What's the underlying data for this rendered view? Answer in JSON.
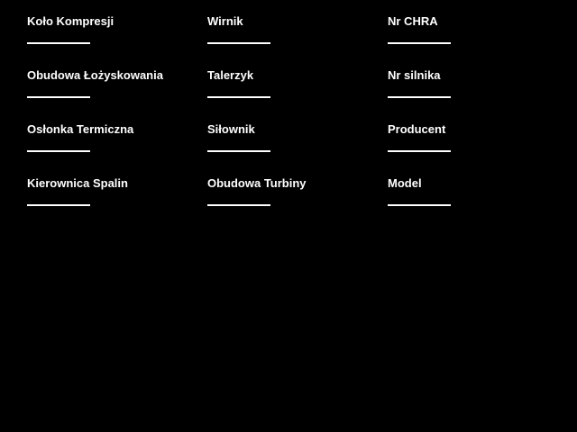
{
  "theme": {
    "background": "#000000",
    "text_color": "#ffffff",
    "line_color": "#ffffff"
  },
  "form": {
    "columns": [
      {
        "name": "parts-left",
        "fields": [
          {
            "label": "Koło Kompresji",
            "value": ""
          },
          {
            "label": "Obudowa Łożyskowania",
            "value": ""
          },
          {
            "label": "Osłonka Termiczna",
            "value": ""
          },
          {
            "label": "Kierownica Spalin",
            "value": ""
          }
        ]
      },
      {
        "name": "parts-middle",
        "fields": [
          {
            "label": "Wirnik",
            "value": ""
          },
          {
            "label": "Talerzyk",
            "value": ""
          },
          {
            "label": "Siłownik",
            "value": ""
          },
          {
            "label": "Obudowa Turbiny",
            "value": ""
          }
        ]
      },
      {
        "name": "identification-right",
        "fields": [
          {
            "label": "Nr CHRA",
            "value": ""
          },
          {
            "label": "Nr silnika",
            "value": ""
          },
          {
            "label": "Producent",
            "value": ""
          },
          {
            "label": "Model",
            "value": ""
          }
        ]
      }
    ]
  }
}
